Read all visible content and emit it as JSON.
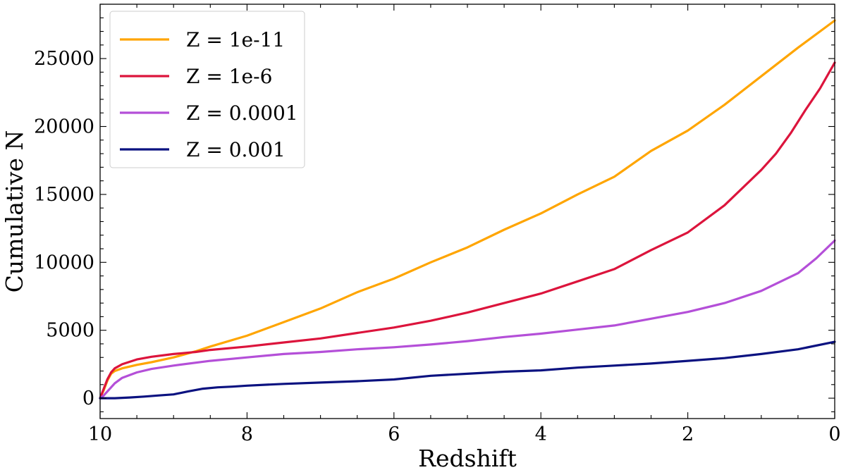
{
  "chart_data": {
    "type": "line",
    "xlabel": "Redshift",
    "ylabel": "Cumulative N",
    "xlim": [
      10,
      0
    ],
    "ylim": [
      -1500,
      29000
    ],
    "x_inverted": true,
    "grid": false,
    "legend_position": "top-left",
    "x_ticks": [
      "10",
      "8",
      "6",
      "4",
      "2",
      "0"
    ],
    "y_ticks": [
      "0",
      "5000",
      "10000",
      "15000",
      "20000",
      "25000"
    ],
    "series": [
      {
        "name": "Z = 1e-11",
        "color": "#ffa500",
        "x": [
          10,
          9.95,
          9.9,
          9.85,
          9.8,
          9.7,
          9.5,
          9.3,
          9.0,
          8.7,
          8.5,
          8.0,
          7.5,
          7.0,
          6.5,
          6.0,
          5.5,
          5.0,
          4.5,
          4.0,
          3.5,
          3.0,
          2.5,
          2.0,
          1.5,
          1.0,
          0.5,
          0
        ],
        "y": [
          0,
          600,
          1300,
          1800,
          2000,
          2200,
          2450,
          2650,
          3000,
          3450,
          3800,
          4600,
          5600,
          6600,
          7800,
          8800,
          10000,
          11100,
          12400,
          13600,
          15000,
          16300,
          18200,
          19700,
          21600,
          23700,
          25800,
          27800
        ]
      },
      {
        "name": "Z = 1e-6",
        "color": "#dc143c",
        "x": [
          10,
          9.95,
          9.9,
          9.85,
          9.8,
          9.7,
          9.5,
          9.3,
          9.0,
          8.7,
          8.5,
          8.0,
          7.5,
          7.0,
          6.5,
          6.0,
          5.5,
          5.0,
          4.5,
          4.0,
          3.5,
          3.0,
          2.5,
          2.0,
          1.5,
          1.0,
          0.8,
          0.6,
          0.4,
          0.2,
          0
        ],
        "y": [
          0,
          700,
          1400,
          1900,
          2200,
          2500,
          2850,
          3050,
          3250,
          3400,
          3550,
          3800,
          4100,
          4400,
          4800,
          5200,
          5700,
          6300,
          7000,
          7700,
          8600,
          9500,
          10900,
          12200,
          14200,
          16800,
          18000,
          19500,
          21200,
          22800,
          24700
        ]
      },
      {
        "name": "Z = 0.0001",
        "color": "#b44fd8",
        "x": [
          10,
          9.95,
          9.9,
          9.85,
          9.8,
          9.7,
          9.5,
          9.3,
          9.0,
          8.5,
          8.0,
          7.5,
          7.0,
          6.5,
          6.0,
          5.5,
          5.0,
          4.5,
          4.0,
          3.5,
          3.0,
          2.5,
          2.0,
          1.5,
          1.0,
          0.5,
          0.25,
          0
        ],
        "y": [
          0,
          200,
          500,
          800,
          1100,
          1500,
          1900,
          2150,
          2400,
          2750,
          3000,
          3250,
          3400,
          3600,
          3750,
          3950,
          4200,
          4500,
          4750,
          5050,
          5350,
          5850,
          6350,
          7000,
          7900,
          9200,
          10300,
          11600
        ]
      },
      {
        "name": "Z = 0.001",
        "color": "#0b1280",
        "x": [
          10,
          9.8,
          9.6,
          9.4,
          9.2,
          9.0,
          8.8,
          8.6,
          8.4,
          8.2,
          8.0,
          7.5,
          7.0,
          6.5,
          6.0,
          5.5,
          5.0,
          4.5,
          4.0,
          3.5,
          3.0,
          2.5,
          2.0,
          1.5,
          1.0,
          0.5,
          0
        ],
        "y": [
          0,
          0,
          50,
          120,
          200,
          280,
          500,
          700,
          800,
          850,
          920,
          1050,
          1150,
          1250,
          1380,
          1650,
          1800,
          1950,
          2050,
          2250,
          2400,
          2550,
          2750,
          2950,
          3250,
          3600,
          4150
        ]
      }
    ]
  }
}
